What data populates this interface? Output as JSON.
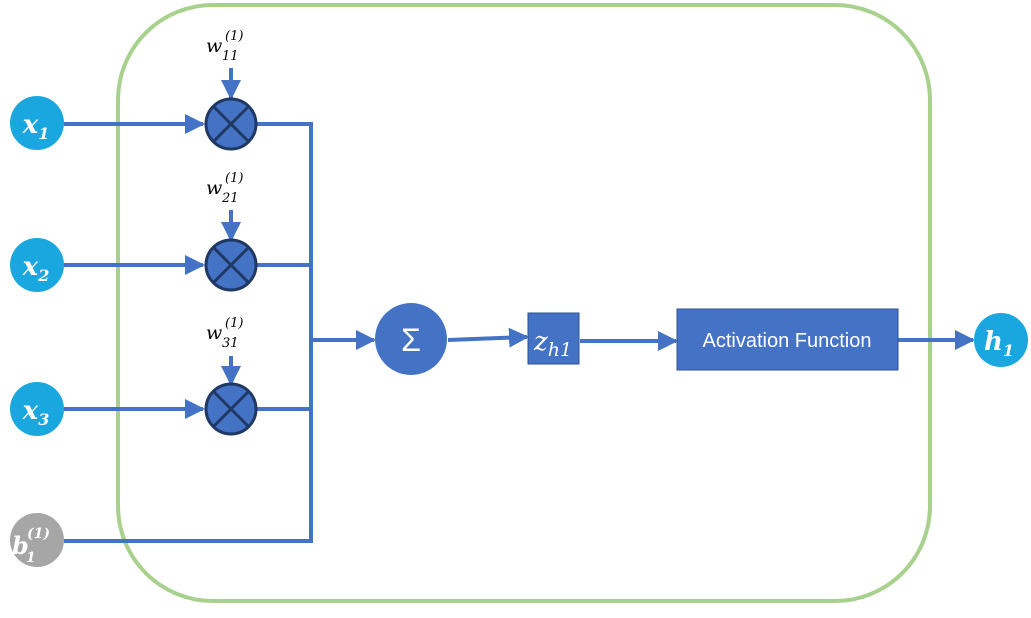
{
  "inputs": [
    {
      "base": "x",
      "sub": "1"
    },
    {
      "base": "x",
      "sub": "2"
    },
    {
      "base": "x",
      "sub": "3"
    }
  ],
  "bias": {
    "base": "b",
    "sub": "1",
    "sup": "(1)"
  },
  "weights": [
    {
      "base": "w",
      "sub": "11",
      "sup": "(1)"
    },
    {
      "base": "w",
      "sub": "21",
      "sup": "(1)"
    },
    {
      "base": "w",
      "sub": "31",
      "sup": "(1)"
    }
  ],
  "sum_symbol": "Σ",
  "z_node": {
    "base": "z",
    "sub": "h1"
  },
  "activation_label": "Activation Function",
  "output": {
    "base": "h",
    "sub": "1"
  },
  "colors": {
    "input_fill": "#1aa7e0",
    "bias_fill": "#a6a6a6",
    "line": "#4472c4",
    "multiplier_fill": "#4472c4",
    "multiplier_stroke": "#1f3864",
    "frame_stroke": "#a9d18e",
    "box_fill": "#4472c4",
    "box_stroke": "#2f528f"
  }
}
